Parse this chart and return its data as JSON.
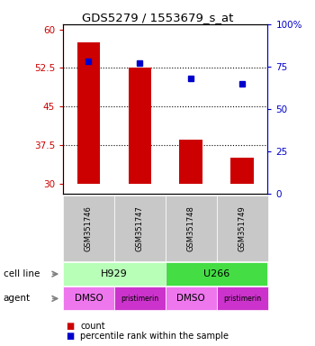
{
  "title": "GDS5279 / 1553679_s_at",
  "samples": [
    "GSM351746",
    "GSM351747",
    "GSM351748",
    "GSM351749"
  ],
  "bar_values": [
    57.5,
    52.5,
    38.5,
    35.0
  ],
  "bar_bottom": 30.0,
  "percentile_values": [
    78,
    77,
    68,
    65
  ],
  "ylim_left": [
    28,
    61
  ],
  "ylim_right": [
    0,
    100
  ],
  "yticks_left": [
    30,
    37.5,
    45,
    52.5,
    60
  ],
  "yticks_right": [
    0,
    25,
    50,
    75,
    100
  ],
  "ytick_labels_left": [
    "30",
    "37.5",
    "45",
    "52.5",
    "60"
  ],
  "ytick_labels_right": [
    "0",
    "25",
    "50",
    "75",
    "100%"
  ],
  "hlines": [
    37.5,
    45.0,
    52.5
  ],
  "bar_color": "#cc0000",
  "dot_color": "#0000cc",
  "gsm_bg_color": "#c8c8c8",
  "cell_line_groups": [
    {
      "label": "H929",
      "start": 0,
      "end": 2,
      "color": "#b8ffb8"
    },
    {
      "label": "U266",
      "start": 2,
      "end": 4,
      "color": "#44dd44"
    }
  ],
  "agent_colors": [
    "#ee77ee",
    "#cc33cc",
    "#ee77ee",
    "#cc33cc"
  ],
  "agent_labels": [
    "DMSO",
    "pristimerin",
    "DMSO",
    "pristimerin"
  ],
  "label_cell_line": "cell line",
  "label_agent": "agent",
  "legend_count_color": "#cc0000",
  "legend_pct_color": "#0000cc"
}
